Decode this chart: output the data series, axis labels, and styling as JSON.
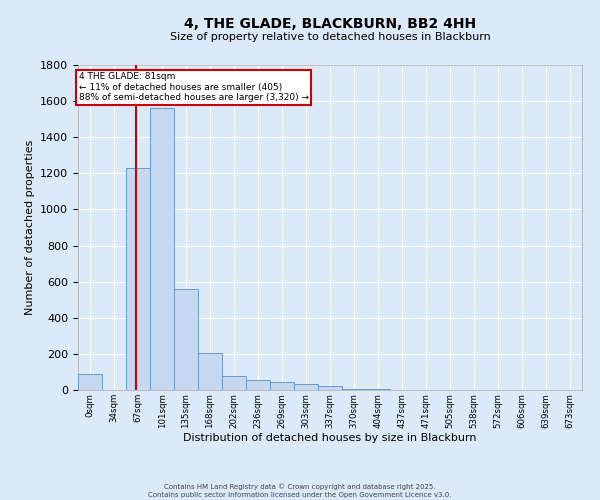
{
  "title": "4, THE GLADE, BLACKBURN, BB2 4HH",
  "subtitle": "Size of property relative to detached houses in Blackburn",
  "xlabel": "Distribution of detached houses by size in Blackburn",
  "ylabel": "Number of detached properties",
  "footer_line1": "Contains HM Land Registry data © Crown copyright and database right 2025.",
  "footer_line2": "Contains public sector information licensed under the Open Government Licence v3.0.",
  "bar_color": "#c5d8f0",
  "bar_edge_color": "#6699cc",
  "background_color": "#dce9f8",
  "grid_color": "#ffffff",
  "annotation_box_color": "#cc0000",
  "annotation_text_line1": "4 THE GLADE: 81sqm",
  "annotation_text_line2": "← 11% of detached houses are smaller (405)",
  "annotation_text_line3": "88% of semi-detached houses are larger (3,320) →",
  "vline_x": 81,
  "vline_color": "#cc0000",
  "categories": [
    "0sqm",
    "34sqm",
    "67sqm",
    "101sqm",
    "135sqm",
    "168sqm",
    "202sqm",
    "236sqm",
    "269sqm",
    "303sqm",
    "337sqm",
    "370sqm",
    "404sqm",
    "437sqm",
    "471sqm",
    "505sqm",
    "538sqm",
    "572sqm",
    "606sqm",
    "639sqm",
    "673sqm"
  ],
  "bin_edges": [
    0,
    34,
    67,
    101,
    135,
    168,
    202,
    236,
    269,
    303,
    337,
    370,
    404,
    437,
    471,
    505,
    538,
    572,
    606,
    639,
    673,
    707
  ],
  "values": [
    90,
    0,
    1230,
    1560,
    560,
    205,
    75,
    55,
    45,
    35,
    20,
    5,
    3,
    2,
    1,
    0,
    0,
    0,
    0,
    0,
    0
  ],
  "ylim": [
    0,
    1800
  ],
  "yticks": [
    0,
    200,
    400,
    600,
    800,
    1000,
    1200,
    1400,
    1600,
    1800
  ]
}
